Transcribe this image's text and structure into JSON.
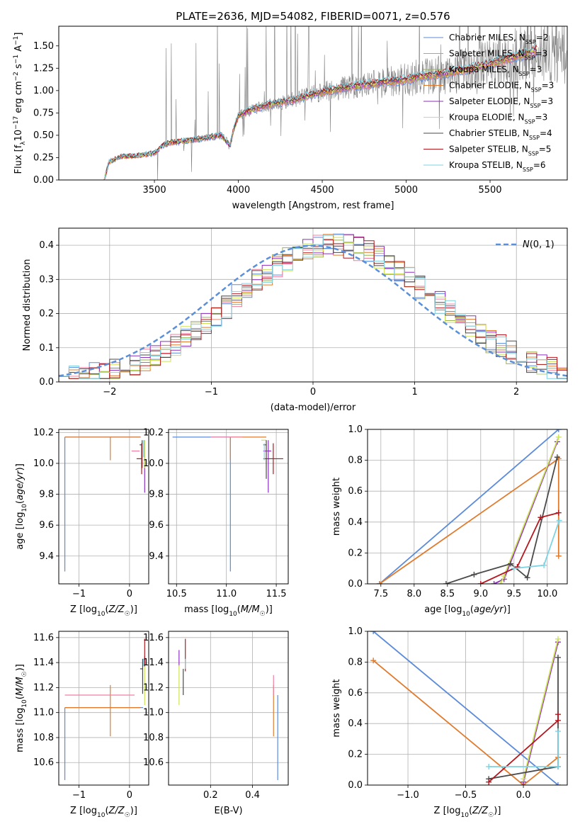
{
  "figure_title": "PLATE=2636, MJD=54082, FIBERID=0071, z=0.576",
  "colors": {
    "Chabrier MILES": "#5b8bd9",
    "Salpeter MILES": "#f07f9f",
    "Kroupa MILES": "#9ab34f",
    "Chabrier ELODIE": "#e07b2e",
    "Salpeter ELODIE": "#8f2fbd",
    "Kroupa ELODIE": "#cfe35a",
    "Chabrier STELIB": "#4a4a4a",
    "Salpeter STELIB": "#b4181e",
    "Kroupa STELIB": "#7fd3e3",
    "normal_curve": "#5b8fd8",
    "observed_spectrum": "#808080"
  },
  "chart_data": [
    {
      "id": "spectrum",
      "type": "line",
      "title": "PLATE=2636, MJD=54082, FIBERID=0071, z=0.576",
      "xlabel": "wavelength [Angstrom, rest frame]",
      "ylabel": "Flux [f_λ 10^-17 erg cm^-2 s^-1 A^-1]",
      "xlim": [
        2930,
        5960
      ],
      "ylim": [
        0,
        1.72
      ],
      "xticks": [
        3500,
        4000,
        4500,
        5000,
        5500
      ],
      "yticks": [
        0.0,
        0.25,
        0.5,
        0.75,
        1.0,
        1.25,
        1.5
      ],
      "grid": false,
      "legend_position": "top-right",
      "legend": [
        "Chabrier MILES, N_SSP=2",
        "Salpeter MILES, N_SSP=3",
        "Kroupa MILES, N_SSP=3",
        "Chabrier ELODIE, N_SSP=3",
        "Salpeter ELODIE, N_SSP=3",
        "Kroupa ELODIE, N_SSP=3",
        "Chabrier STELIB, N_SSP=4",
        "Salpeter STELIB, N_SSP=5",
        "Kroupa STELIB, N_SSP=6"
      ],
      "model_continuum": {
        "x": [
          3200,
          3230,
          3300,
          3400,
          3500,
          3560,
          3600,
          3700,
          3800,
          3900,
          3950,
          3970,
          4000,
          4100,
          4200,
          4300,
          4400,
          4500,
          4600,
          4700,
          4800,
          4900,
          5000,
          5100,
          5200,
          5300,
          5400,
          5500,
          5600,
          5700,
          5780
        ],
        "y": [
          0.0,
          0.2,
          0.26,
          0.27,
          0.3,
          0.4,
          0.42,
          0.44,
          0.47,
          0.5,
          0.38,
          0.55,
          0.72,
          0.8,
          0.85,
          0.88,
          0.93,
          0.98,
          1.02,
          1.05,
          1.07,
          1.1,
          1.12,
          1.16,
          1.18,
          1.21,
          1.25,
          1.3,
          1.35,
          1.4,
          1.45
        ]
      }
    },
    {
      "id": "residuals",
      "type": "line",
      "xlabel": "(data-model)/error",
      "ylabel": "Normed distribution",
      "xlim": [
        -2.5,
        2.5
      ],
      "ylim": [
        0,
        0.45
      ],
      "xticks": [
        -2,
        -1,
        0,
        1,
        2
      ],
      "yticks": [
        0.0,
        0.1,
        0.2,
        0.3,
        0.4
      ],
      "grid": true,
      "legend_position": "top-right",
      "legend": [
        "N(0, 1)"
      ],
      "histogram_bin_width": 0.1
    },
    {
      "id": "age-vs-Z",
      "type": "scatter",
      "xlabel": "Z [log10(Z/Z☉)]",
      "ylabel": "age  [log10(age/yr)]",
      "xlim": [
        -1.4,
        0.38
      ],
      "ylim": [
        9.22,
        10.22
      ],
      "xticks": [
        -1,
        0
      ],
      "yticks": [
        9.4,
        9.6,
        9.8,
        10.0,
        10.2
      ],
      "grid": true,
      "errorbars": [
        {
          "series": "Chabrier MILES",
          "x": -1.28,
          "y": 10.17,
          "xerr": [
            0.0,
            1.5
          ],
          "yerr": [
            0.87,
            0.0
          ]
        },
        {
          "series": "Chabrier ELODIE",
          "x": -0.38,
          "y": 10.17,
          "xerr": [
            0.9,
            0.6
          ],
          "yerr": [
            0.15,
            0.0
          ]
        },
        {
          "series": "Salpeter ELODIE",
          "x": 0.3,
          "y": 10.08,
          "xerr": [
            0.0,
            0.0
          ],
          "yerr": [
            0.27,
            0.07
          ]
        },
        {
          "series": "Kroupa ELODIE",
          "x": 0.3,
          "y": 10.15,
          "xerr": [
            0.0,
            0.0
          ],
          "yerr": [
            0.18,
            0.0
          ]
        },
        {
          "series": "Chabrier STELIB",
          "x": 0.25,
          "y": 10.12,
          "xerr": [
            0.05,
            0.0
          ],
          "yerr": [
            0.15,
            0.03
          ]
        },
        {
          "series": "Salpeter STELIB",
          "x": 0.24,
          "y": 10.03,
          "xerr": [
            0.1,
            0.0
          ],
          "yerr": [
            0.1,
            0.1
          ]
        },
        {
          "series": "Kroupa STELIB",
          "x": 0.28,
          "y": 10.1,
          "xerr": [
            0.0,
            0.0
          ],
          "yerr": [
            0.06,
            0.05
          ]
        },
        {
          "series": "Salpeter MILES",
          "x": 0.1,
          "y": 10.08,
          "xerr": [
            0.06,
            0.1
          ],
          "yerr": [
            0.0,
            0.0
          ]
        }
      ]
    },
    {
      "id": "age-vs-mass",
      "type": "scatter",
      "xlabel": "mass [log10(M/M☉)]",
      "ylabel": "",
      "xlim": [
        10.42,
        11.62
      ],
      "ylim": [
        9.22,
        10.22
      ],
      "xticks": [
        10.5,
        11.0,
        11.5
      ],
      "yticks": [
        9.4,
        9.6,
        9.8,
        10.0,
        10.2
      ],
      "grid": true,
      "errorbars": [
        {
          "series": "Chabrier MILES",
          "x": 11.04,
          "y": 10.17,
          "xerr": [
            0.58,
            0.0
          ],
          "yerr": [
            0.87,
            0.0
          ]
        },
        {
          "series": "Chabrier ELODIE",
          "x": 11.04,
          "y": 10.17,
          "xerr": [
            0.0,
            0.36
          ],
          "yerr": [
            0.15,
            0.0
          ]
        },
        {
          "series": "Salpeter MILES",
          "x": 11.14,
          "y": 10.17,
          "xerr": [
            0.3,
            0.02
          ],
          "yerr": [
            0.0,
            0.0
          ]
        },
        {
          "series": "Salpeter ELODIE",
          "x": 11.42,
          "y": 10.08,
          "xerr": [
            0.05,
            0.03
          ],
          "yerr": [
            0.27,
            0.07
          ]
        },
        {
          "series": "Kroupa ELODIE",
          "x": 11.4,
          "y": 10.15,
          "xerr": [
            0.05,
            0.0
          ],
          "yerr": [
            0.18,
            0.0
          ]
        },
        {
          "series": "Chabrier STELIB",
          "x": 11.4,
          "y": 10.12,
          "xerr": [
            0.03,
            0.0
          ],
          "yerr": [
            0.22,
            0.03
          ]
        },
        {
          "series": "Salpeter STELIB",
          "x": 11.47,
          "y": 10.03,
          "xerr": [
            0.1,
            0.1
          ],
          "yerr": [
            0.1,
            0.1
          ]
        },
        {
          "series": "Kroupa STELIB",
          "x": 11.38,
          "y": 10.1,
          "xerr": [
            0.0,
            0.0
          ],
          "yerr": [
            0.08,
            0.03
          ]
        }
      ]
    },
    {
      "id": "mass-weight-vs-age",
      "type": "line",
      "xlabel": "age  [log10(age/yr)]",
      "ylabel": "mass weight",
      "xlim": [
        7.3,
        10.3
      ],
      "ylim": [
        0,
        1.0
      ],
      "xticks": [
        7.5,
        8.0,
        8.5,
        9.0,
        9.5,
        10.0
      ],
      "yticks": [
        0.0,
        0.2,
        0.4,
        0.6,
        0.8,
        1.0
      ],
      "grid": true,
      "series": [
        {
          "name": "Chabrier MILES",
          "x": [
            7.48,
            10.17
          ],
          "y": [
            0.0,
            1.0
          ]
        },
        {
          "name": "Chabrier ELODIE",
          "x": [
            7.48,
            10.17,
            10.17
          ],
          "y": [
            0.0,
            0.81,
            0.18
          ]
        },
        {
          "name": "Salpeter ELODIE",
          "x": [
            9.2,
            9.35,
            10.15
          ],
          "y": [
            0.0,
            0.03,
            0.92
          ]
        },
        {
          "name": "Kroupa ELODIE",
          "x": [
            9.3,
            9.35,
            10.17
          ],
          "y": [
            0.0,
            0.05,
            0.95
          ]
        },
        {
          "name": "Chabrier STELIB",
          "x": [
            8.48,
            8.9,
            9.45,
            9.7,
            10.15
          ],
          "y": [
            0.0,
            0.06,
            0.13,
            0.04,
            0.82
          ]
        },
        {
          "name": "Salpeter STELIB",
          "x": [
            9.0,
            9.55,
            9.9,
            10.17
          ],
          "y": [
            0.0,
            0.11,
            0.43,
            0.46
          ]
        },
        {
          "name": "Kroupa STELIB",
          "x": [
            9.5,
            9.95,
            10.18
          ],
          "y": [
            0.1,
            0.12,
            0.41
          ]
        }
      ]
    },
    {
      "id": "mass-vs-Z",
      "type": "scatter",
      "xlabel": "Z [log10(Z/Z☉)]",
      "ylabel": "mass [log10(M/M☉)]",
      "xlim": [
        -1.4,
        0.38
      ],
      "ylim": [
        10.42,
        11.65
      ],
      "xticks": [
        -1,
        0
      ],
      "yticks": [
        10.6,
        10.8,
        11.0,
        11.2,
        11.4,
        11.6
      ],
      "grid": true,
      "errorbars": [
        {
          "series": "Chabrier MILES",
          "x": -1.28,
          "y": 11.04,
          "xerr": [
            0.0,
            1.55
          ],
          "yerr": [
            0.58,
            0.0
          ]
        },
        {
          "series": "Chabrier ELODIE",
          "x": -0.38,
          "y": 11.04,
          "xerr": [
            0.9,
            0.6
          ],
          "yerr": [
            0.23,
            0.18
          ]
        },
        {
          "series": "Salpeter MILES",
          "x": -1.28,
          "y": 11.14,
          "xerr": [
            0.0,
            1.38
          ],
          "yerr": [
            0.0,
            0.0
          ]
        },
        {
          "series": "Salpeter ELODIE",
          "x": 0.3,
          "y": 11.42,
          "xerr": [
            0.0,
            0.0
          ],
          "yerr": [
            0.05,
            0.03
          ]
        },
        {
          "series": "Kroupa ELODIE",
          "x": 0.3,
          "y": 11.38,
          "xerr": [
            0.0,
            0.0
          ],
          "yerr": [
            0.32,
            0.0
          ]
        },
        {
          "series": "Chabrier STELIB",
          "x": 0.26,
          "y": 11.35,
          "xerr": [
            0.05,
            0.0
          ],
          "yerr": [
            0.2,
            0.08
          ]
        },
        {
          "series": "Salpeter STELIB",
          "x": 0.3,
          "y": 11.47,
          "xerr": [
            0.0,
            0.0
          ],
          "yerr": [
            0.1,
            0.12
          ]
        },
        {
          "series": "Kroupa STELIB",
          "x": 0.28,
          "y": 11.4,
          "xerr": [
            0.0,
            0.0
          ],
          "yerr": [
            0.03,
            0.03
          ]
        }
      ]
    },
    {
      "id": "mass-vs-ebv",
      "type": "scatter",
      "xlabel": "E(B-V)",
      "ylabel": "",
      "xlim": [
        0.0,
        0.57
      ],
      "ylim": [
        10.42,
        11.65
      ],
      "xticks": [
        0.2,
        0.4
      ],
      "yticks": [
        10.6,
        10.8,
        11.0,
        11.2,
        11.4,
        11.6
      ],
      "grid": true,
      "errorbars": [
        {
          "series": "Chabrier MILES",
          "x": 0.52,
          "y": 11.04,
          "xerr": [
            0.0,
            0.0
          ],
          "yerr": [
            0.58,
            0.1
          ]
        },
        {
          "series": "Chabrier ELODIE",
          "x": 0.5,
          "y": 11.04,
          "xerr": [
            0.0,
            0.0
          ],
          "yerr": [
            0.23,
            0.18
          ]
        },
        {
          "series": "Salpeter MILES",
          "x": 0.5,
          "y": 11.14,
          "xerr": [
            0.0,
            0.0
          ],
          "yerr": [
            0.0,
            0.16
          ]
        },
        {
          "series": "Salpeter ELODIE",
          "x": 0.05,
          "y": 11.42,
          "xerr": [
            0.0,
            0.0
          ],
          "yerr": [
            0.05,
            0.08
          ]
        },
        {
          "series": "Kroupa ELODIE",
          "x": 0.05,
          "y": 11.38,
          "xerr": [
            0.0,
            0.0
          ],
          "yerr": [
            0.32,
            0.0
          ]
        },
        {
          "series": "Chabrier STELIB",
          "x": 0.07,
          "y": 11.3,
          "xerr": [
            0.0,
            0.0
          ],
          "yerr": [
            0.16,
            0.05
          ]
        },
        {
          "series": "Salpeter STELIB",
          "x": 0.08,
          "y": 11.47,
          "xerr": [
            0.0,
            0.0
          ],
          "yerr": [
            0.14,
            0.12
          ]
        },
        {
          "series": "Kroupa STELIB",
          "x": 0.08,
          "y": 11.4,
          "xerr": [
            0.0,
            0.0
          ],
          "yerr": [
            0.05,
            0.03
          ]
        }
      ]
    },
    {
      "id": "mass-weight-vs-Z",
      "type": "line",
      "xlabel": "Z [log10(Z/Z☉)]",
      "ylabel": "mass weight",
      "xlim": [
        -1.35,
        0.38
      ],
      "ylim": [
        0,
        1.0
      ],
      "xticks": [
        -1.0,
        -0.5,
        0.0
      ],
      "yticks": [
        0.0,
        0.2,
        0.4,
        0.6,
        0.8,
        1.0
      ],
      "grid": true,
      "series": [
        {
          "name": "Chabrier MILES",
          "x": [
            -1.3,
            0.3
          ],
          "y": [
            1.0,
            0.0
          ]
        },
        {
          "name": "Chabrier ELODIE",
          "x": [
            -1.3,
            0.0,
            0.3
          ],
          "y": [
            0.81,
            0.0,
            0.18
          ]
        },
        {
          "name": "Salpeter ELODIE",
          "x": [
            0.0,
            0.3
          ],
          "y": [
            0.02,
            0.93
          ]
        },
        {
          "name": "Kroupa ELODIE",
          "x": [
            0.0,
            0.3
          ],
          "y": [
            0.04,
            0.95
          ]
        },
        {
          "name": "Chabrier STELIB",
          "x": [
            -0.3,
            0.3,
            0.3
          ],
          "y": [
            0.04,
            0.12,
            0.83
          ]
        },
        {
          "name": "Salpeter STELIB",
          "x": [
            -0.3,
            0.3,
            0.3
          ],
          "y": [
            0.02,
            0.42,
            0.46
          ]
        },
        {
          "name": "Kroupa STELIB",
          "x": [
            -0.3,
            0.3,
            0.3
          ],
          "y": [
            0.12,
            0.12,
            0.35
          ]
        }
      ]
    }
  ]
}
